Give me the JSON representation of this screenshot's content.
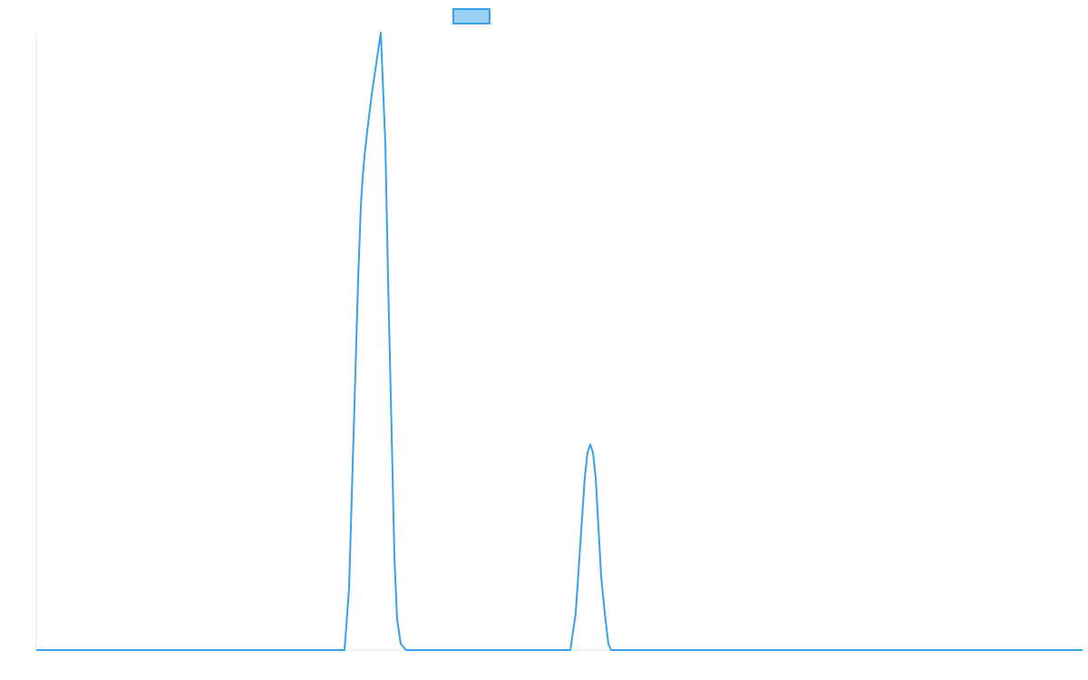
{
  "chart_data": {
    "type": "line",
    "title": "",
    "xlabel": "",
    "ylabel": "",
    "x": [
      0,
      305,
      310,
      320,
      330,
      340,
      345,
      350,
      360,
      365,
      370,
      372,
      375,
      385,
      388,
      408,
      520,
      545,
      560,
      570,
      575,
      580,
      585,
      590,
      596,
      600,
      605,
      610,
      615,
      620,
      625,
      628,
      634,
      1154
    ],
    "xlim": [
      0,
      1154
    ],
    "ylim": [
      0,
      100
    ],
    "grid": false,
    "legend": "top-center",
    "series": [
      {
        "label": "",
        "color": "#36a2eb",
        "fill": "#9ad0f5",
        "values": [
          0,
          0,
          0,
          0,
          0,
          0,
          0,
          0,
          0,
          0,
          0,
          0,
          0,
          0,
          0,
          0,
          0,
          0,
          0,
          0,
          0,
          0,
          0,
          0,
          0,
          0,
          0,
          0,
          0,
          0,
          0,
          0,
          0,
          0
        ]
      }
    ],
    "peaks": [
      {
        "x": [
          340,
          345,
          350,
          355,
          358,
          360,
          362,
          365,
          370,
          375,
          380,
          385,
          388,
          392,
          395,
          398,
          402,
          408
        ],
        "y": [
          0,
          10,
          35,
          60,
          72,
          76.5,
          80,
          84,
          90,
          95,
          100,
          82,
          60,
          35,
          15,
          5,
          1,
          0
        ]
      },
      {
        "x": [
          589,
          595,
          600,
          605,
          608,
          611,
          614,
          617,
          620,
          623,
          627,
          631,
          634
        ],
        "y": [
          0,
          6,
          17,
          28,
          32,
          33.3,
          32,
          28,
          20,
          12,
          6,
          1,
          0
        ]
      }
    ]
  }
}
